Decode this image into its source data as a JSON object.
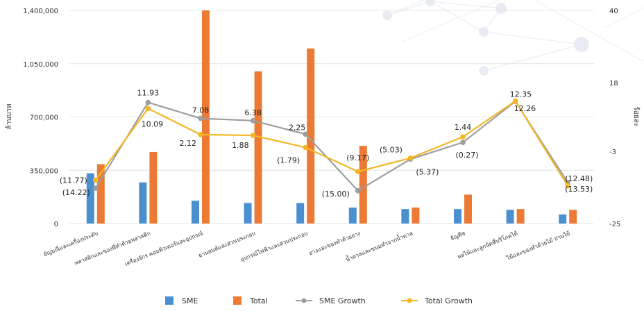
{
  "chart_data": {
    "type": "bar",
    "title": "",
    "categories": [
      "ยัญมณีและเครื่องประดับ",
      "พลาสติกและของที่ทำด้วยพลาสติก",
      "เครื่องจักร คอมพิวเตอร์และอุปกรณ์",
      "ยานยนต์และส่วนประกอบ",
      "อุปกรณ์ไฟฟ้าและส่วนประกอบ",
      "ยางและของทำด้วยยาง",
      "น้ำตาลและขนมทำจากน้ำตาล",
      "ธัญพืช",
      "ผลไม้และลูกนัตที่บริโภคได้",
      "ไม้และของทำด้วยไม้ ถ่านไม้"
    ],
    "ylabel": "ล้านบาท",
    "y2label": "ร้อยละ",
    "ylim": [
      0,
      1400000
    ],
    "y2lim": [
      -25,
      40
    ],
    "yticks": [
      "1,400,000",
      "1,050,000",
      "700,000",
      "350,000",
      "0"
    ],
    "y2ticks": [
      "40",
      "18",
      "-3",
      "-25"
    ],
    "grid": true,
    "legend_position": "bottom",
    "series": [
      {
        "name": "SME",
        "kind": "bar",
        "color": "#4a90d0",
        "values": [
          330000,
          270000,
          150000,
          135000,
          135000,
          105000,
          95000,
          95000,
          90000,
          60000
        ]
      },
      {
        "name": "Total",
        "kind": "bar",
        "color": "#ec7a34",
        "values": [
          390000,
          470000,
          1400000,
          1000000,
          1150000,
          510000,
          105000,
          190000,
          95000,
          90000
        ]
      },
      {
        "name": "SME Growth",
        "kind": "line",
        "color": "#9e9e9e",
        "axis": "right",
        "values": [
          -14.22,
          11.93,
          7.08,
          6.38,
          2.25,
          -15.0,
          -5.37,
          -0.27,
          12.26,
          -12.48
        ],
        "labels": [
          "(14.22)",
          "11.93",
          "7.08",
          "6.38",
          "2.25",
          "(15.00)",
          "(5.37)",
          "(0.27)",
          "12.26",
          "(12.48)"
        ]
      },
      {
        "name": "Total Growth",
        "kind": "line",
        "color": "#f2b824",
        "axis": "right",
        "values": [
          -11.77,
          10.09,
          2.12,
          1.88,
          -1.79,
          -9.17,
          -5.03,
          1.44,
          12.35,
          -13.53
        ],
        "labels": [
          "(11.77)",
          "10.09",
          "2.12",
          "1.88",
          "(1.79)",
          "(9.17)",
          "(5.03)",
          "1.44",
          "12.35",
          "(13.53)"
        ]
      }
    ]
  }
}
